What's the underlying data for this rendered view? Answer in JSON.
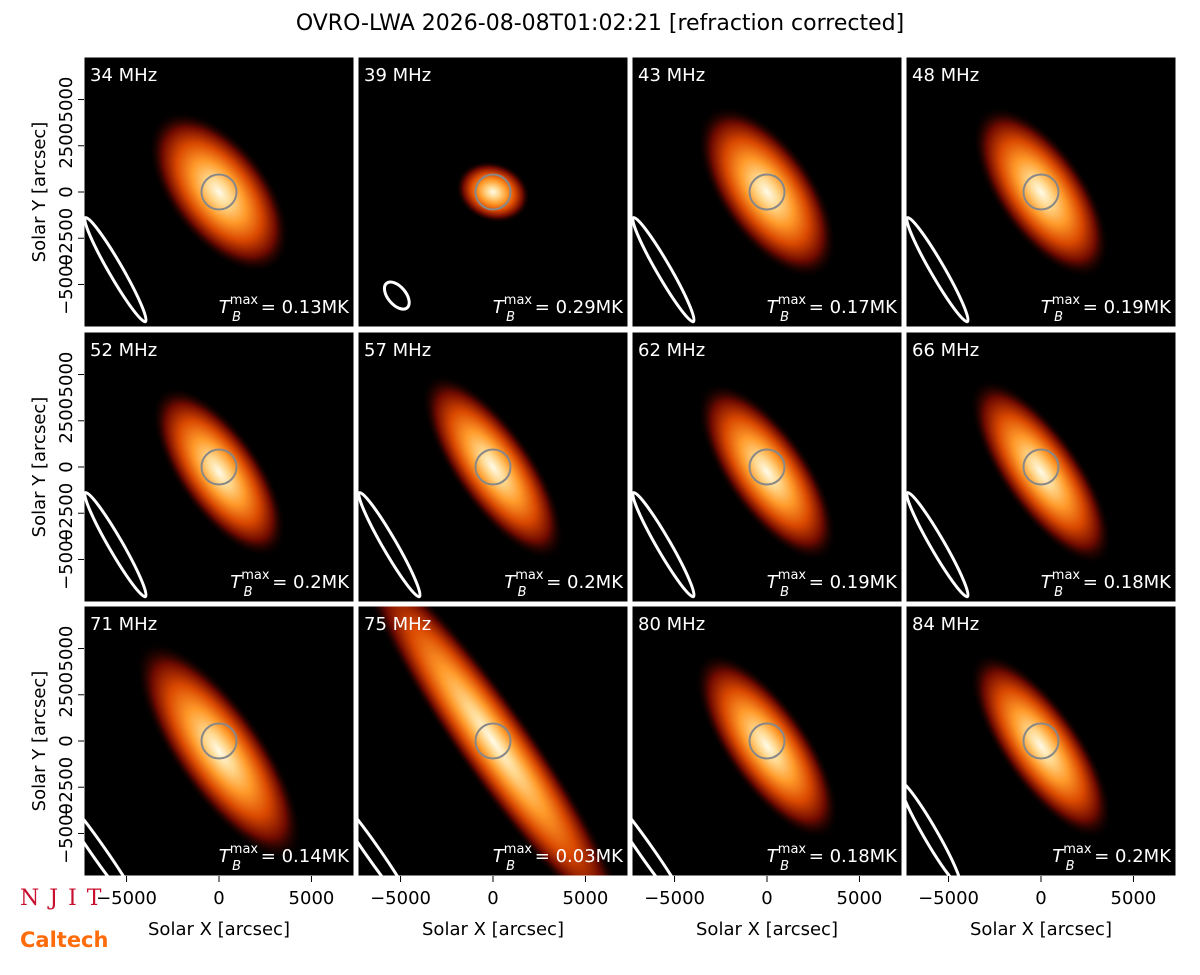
{
  "title": "OVRO-LWA 2026-08-08T01:02:21 [refraction corrected]",
  "axes": {
    "xlabel": "Solar X [arcsec]",
    "ylabel": "Solar Y [arcsec]",
    "xlim": [
      -7300,
      7300
    ],
    "ylim": [
      -7300,
      7300
    ],
    "xticks": [
      {
        "value": -5000,
        "label": "−5000"
      },
      0,
      5000
    ],
    "yticks": [
      {
        "value": -5000,
        "label": "−5000"
      },
      {
        "value": -2500,
        "label": "−2500"
      },
      0,
      2500,
      5000
    ]
  },
  "tmax_symbol": {
    "base": "T",
    "sub": "B",
    "sup": "max",
    "eq": " = "
  },
  "logos": {
    "njit": "NJIT",
    "caltech": "Caltech"
  },
  "chart_data": [
    {
      "type": "image",
      "title": "34 MHz",
      "tmax": {
        "value": 0.13,
        "label": "0.13MK"
      }
    },
    {
      "type": "image",
      "title": "39 MHz",
      "tmax": {
        "value": 0.29,
        "label": "0.29MK"
      }
    },
    {
      "type": "image",
      "title": "43 MHz",
      "tmax": {
        "value": 0.17,
        "label": "0.17MK"
      }
    },
    {
      "type": "image",
      "title": "48 MHz",
      "tmax": {
        "value": 0.19,
        "label": "0.19MK"
      }
    },
    {
      "type": "image",
      "title": "52 MHz",
      "tmax": {
        "value": 0.2,
        "label": "0.2MK"
      }
    },
    {
      "type": "image",
      "title": "57 MHz",
      "tmax": {
        "value": 0.2,
        "label": "0.2MK"
      }
    },
    {
      "type": "image",
      "title": "62 MHz",
      "tmax": {
        "value": 0.19,
        "label": "0.19MK"
      }
    },
    {
      "type": "image",
      "title": "66 MHz",
      "tmax": {
        "value": 0.18,
        "label": "0.18MK"
      }
    },
    {
      "type": "image",
      "title": "71 MHz",
      "tmax": {
        "value": 0.14,
        "label": "0.14MK"
      }
    },
    {
      "type": "image",
      "title": "75 MHz",
      "tmax": {
        "value": 0.03,
        "label": "0.03MK"
      }
    },
    {
      "type": "image",
      "title": "80 MHz",
      "tmax": {
        "value": 0.18,
        "label": "0.18MK"
      }
    },
    {
      "type": "image",
      "title": "84 MHz",
      "tmax": {
        "value": 0.2,
        "label": "0.2MK"
      }
    }
  ]
}
